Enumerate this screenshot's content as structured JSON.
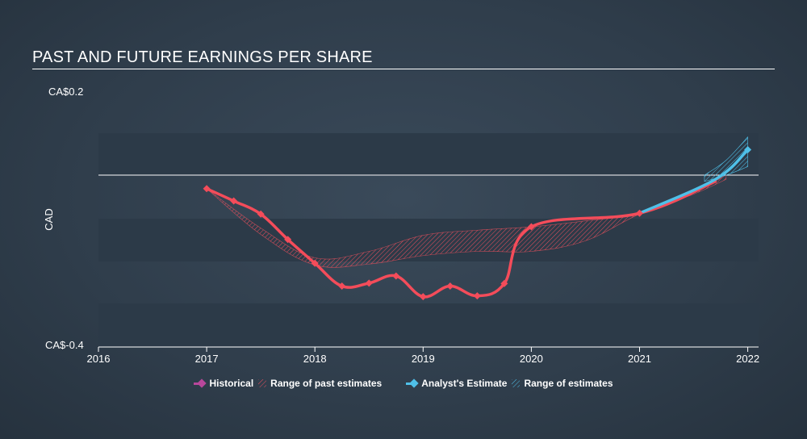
{
  "chart_data": {
    "type": "line",
    "title": "PAST AND FUTURE EARNINGS PER SHARE",
    "ylabel": "CAD",
    "y_tick_labels": [
      "CA$0.2",
      "CA$-0.4"
    ],
    "ylim": [
      -0.4,
      0.2
    ],
    "xlim": [
      2016,
      2022.1
    ],
    "x_ticks": [
      2016,
      2017,
      2018,
      2019,
      2020,
      2021,
      2022
    ],
    "x_tick_labels": [
      "2016",
      "2017",
      "2018",
      "2019",
      "2020",
      "2021",
      "2022"
    ],
    "zero_line": 0,
    "series": [
      {
        "name": "Historical",
        "color": "#f44c5a",
        "points": [
          {
            "x": 2017.0,
            "y": -0.032
          },
          {
            "x": 2017.25,
            "y": -0.061
          },
          {
            "x": 2017.5,
            "y": -0.092
          },
          {
            "x": 2017.75,
            "y": -0.152
          },
          {
            "x": 2018.0,
            "y": -0.208
          },
          {
            "x": 2018.25,
            "y": -0.262
          },
          {
            "x": 2018.5,
            "y": -0.255
          },
          {
            "x": 2018.75,
            "y": -0.238
          },
          {
            "x": 2019.0,
            "y": -0.287
          },
          {
            "x": 2019.25,
            "y": -0.262
          },
          {
            "x": 2019.5,
            "y": -0.285
          },
          {
            "x": 2019.75,
            "y": -0.256
          },
          {
            "x": 2020.0,
            "y": -0.122
          },
          {
            "x": 2021.0,
            "y": -0.09
          },
          {
            "x": 2021.7,
            "y": -0.015
          }
        ],
        "markers_x": [
          2017.0,
          2017.25,
          2017.5,
          2017.75,
          2018.0,
          2018.25,
          2018.5,
          2018.75,
          2019.0,
          2019.25,
          2019.5,
          2019.75,
          2020.0,
          2021.0
        ]
      },
      {
        "name": "Analyst's Estimate",
        "color": "#4fc0e8",
        "points": [
          {
            "x": 2021.0,
            "y": -0.09
          },
          {
            "x": 2021.7,
            "y": -0.01
          },
          {
            "x": 2022.0,
            "y": 0.06
          }
        ],
        "markers_x": [
          2022.0
        ]
      }
    ],
    "past_estimate_range": {
      "name": "Range of past estimates",
      "color": "#e8505d",
      "upper": [
        {
          "x": 2017.0,
          "y": -0.032
        },
        {
          "x": 2017.5,
          "y": -0.125
        },
        {
          "x": 2018.0,
          "y": -0.195
        },
        {
          "x": 2018.5,
          "y": -0.18
        },
        {
          "x": 2019.0,
          "y": -0.142
        },
        {
          "x": 2019.5,
          "y": -0.13
        },
        {
          "x": 2020.0,
          "y": -0.122
        },
        {
          "x": 2020.5,
          "y": -0.108
        },
        {
          "x": 2021.0,
          "y": -0.09
        },
        {
          "x": 2021.5,
          "y": -0.04
        },
        {
          "x": 2021.8,
          "y": 0.0
        }
      ],
      "lower": [
        {
          "x": 2017.0,
          "y": -0.032
        },
        {
          "x": 2017.5,
          "y": -0.14
        },
        {
          "x": 2018.0,
          "y": -0.212
        },
        {
          "x": 2018.5,
          "y": -0.21
        },
        {
          "x": 2019.0,
          "y": -0.19
        },
        {
          "x": 2019.5,
          "y": -0.18
        },
        {
          "x": 2020.0,
          "y": -0.18
        },
        {
          "x": 2020.5,
          "y": -0.155
        },
        {
          "x": 2021.0,
          "y": -0.092
        },
        {
          "x": 2021.5,
          "y": -0.045
        },
        {
          "x": 2021.8,
          "y": -0.01
        }
      ]
    },
    "future_estimate_range": {
      "name": "Range of estimates",
      "color": "#4fc0e8",
      "upper": [
        {
          "x": 2021.6,
          "y": 0.0
        },
        {
          "x": 2021.8,
          "y": 0.035
        },
        {
          "x": 2022.0,
          "y": 0.09
        }
      ],
      "lower": [
        {
          "x": 2021.6,
          "y": -0.015
        },
        {
          "x": 2021.8,
          "y": 0.0
        },
        {
          "x": 2022.0,
          "y": 0.02
        }
      ]
    }
  },
  "legend": {
    "historical": "Historical",
    "past_range": "Range of past estimates",
    "estimate": "Analyst's Estimate",
    "estimate_range": "Range of estimates"
  },
  "colors": {
    "historical": "#f44c5a",
    "legend_historical": "#b8479b",
    "estimate": "#4fc0e8",
    "band": "#2c3a48"
  }
}
